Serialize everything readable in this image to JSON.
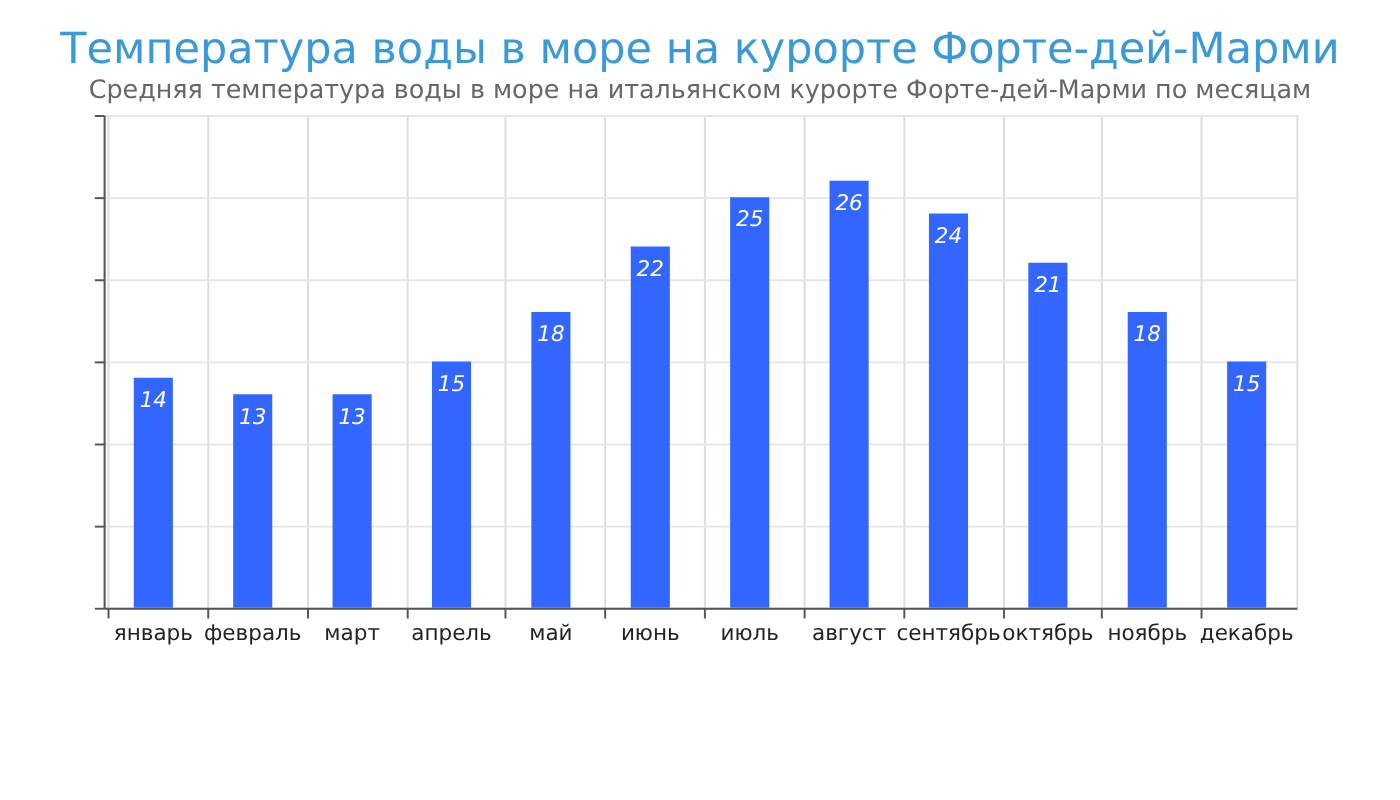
{
  "chart_data": {
    "type": "bar",
    "title": "Температура воды в море на курорте Форте-дей-Марми",
    "subtitle": "Средняя температура воды в море на итальянском курорте Форте-дей-Марми по месяцам",
    "categories": [
      "январь",
      "февраль",
      "март",
      "апрель",
      "май",
      "июнь",
      "июль",
      "август",
      "сентябрь",
      "октябрь",
      "ноябрь",
      "декабрь"
    ],
    "values": [
      14,
      13,
      13,
      15,
      18,
      22,
      25,
      26,
      24,
      21,
      18,
      15
    ],
    "color": "#3366ff",
    "ylim": [
      0,
      30
    ],
    "yticks": [
      {
        "value": 0,
        "label": null
      },
      {
        "value": 5,
        "label": null
      },
      {
        "value": 10,
        "label": null
      },
      {
        "value": 15,
        "label": null
      },
      {
        "value": 20,
        "label": null
      },
      {
        "value": 25,
        "label": null
      },
      {
        "value": 30,
        "label": null
      }
    ],
    "tick_labels": "x",
    "grid": true,
    "data_labels": true
  }
}
